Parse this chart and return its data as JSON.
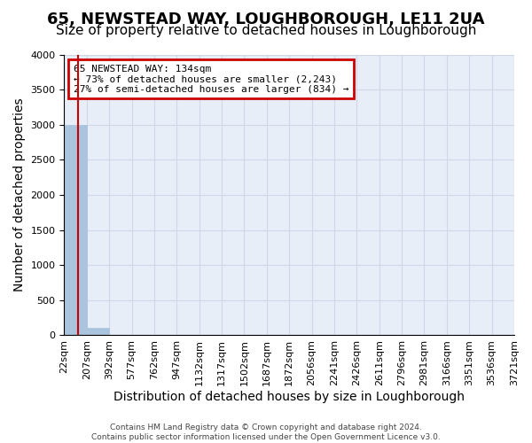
{
  "title": "65, NEWSTEAD WAY, LOUGHBOROUGH, LE11 2UA",
  "subtitle": "Size of property relative to detached houses in Loughborough",
  "xlabel": "Distribution of detached houses by size in Loughborough",
  "ylabel": "Number of detached properties",
  "footer_line1": "Contains HM Land Registry data © Crown copyright and database right 2024.",
  "footer_line2": "Contains public sector information licensed under the Open Government Licence v3.0.",
  "bin_labels": [
    "22sqm",
    "207sqm",
    "392sqm",
    "577sqm",
    "762sqm",
    "947sqm",
    "1132sqm",
    "1317sqm",
    "1502sqm",
    "1687sqm",
    "1872sqm",
    "2056sqm",
    "2241sqm",
    "2426sqm",
    "2611sqm",
    "2796sqm",
    "2981sqm",
    "3166sqm",
    "3351sqm",
    "3536sqm",
    "3721sqm"
  ],
  "bar_heights": [
    3000,
    110,
    0,
    0,
    0,
    0,
    0,
    0,
    0,
    0,
    0,
    0,
    0,
    0,
    0,
    0,
    0,
    0,
    0,
    0
  ],
  "bar_color": "#aac4dd",
  "bar_edge_color": "#aac4dd",
  "ylim": [
    0,
    4000
  ],
  "yticks": [
    0,
    500,
    1000,
    1500,
    2000,
    2500,
    3000,
    3500,
    4000
  ],
  "grid_color": "#d0d8e8",
  "bg_color": "#e8eef8",
  "annotation_text": "65 NEWSTEAD WAY: 134sqm\n← 73% of detached houses are smaller (2,243)\n27% of semi-detached houses are larger (834) →",
  "annotation_box_color": "#cc0000",
  "annotation_text_color": "#000000",
  "title_fontsize": 13,
  "subtitle_fontsize": 11,
  "tick_fontsize": 8,
  "ylabel_fontsize": 10,
  "xlabel_fontsize": 10
}
